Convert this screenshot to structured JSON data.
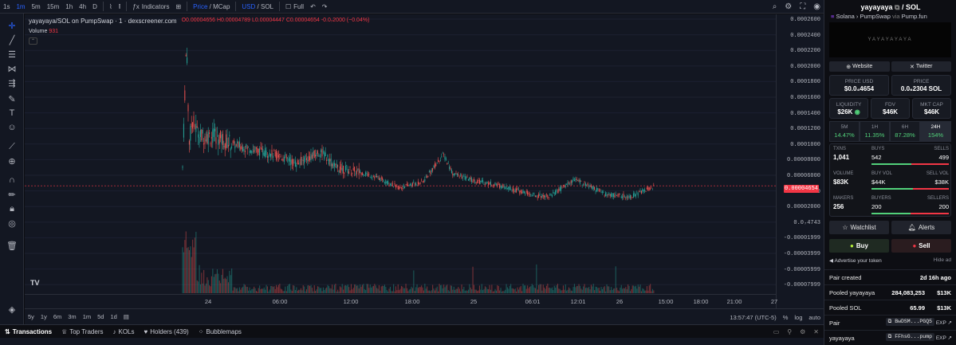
{
  "toolbar": {
    "intervals": [
      "1s",
      "1m",
      "5m",
      "15m",
      "1h",
      "4h",
      "D"
    ],
    "active_interval": "1m",
    "indicators": "Indicators",
    "price": "Price",
    "mcap": "MCap",
    "usd": "USD",
    "sol": "SOL",
    "full": "Full"
  },
  "chart": {
    "symbol_title": "yayayaya/SOL on PumpSwap · 1 · dexscreener.com",
    "ohlc": {
      "o": "O0.00004656",
      "h": "H0.00004789",
      "l": "L0.00004447",
      "c": "C0.00004654",
      "chg": "-0.0₇2000 (−0.04%)"
    },
    "volume_label": "Volume",
    "volume_value": "931",
    "last_price_tag": "0.00004654",
    "y_ticks": [
      "0.0002600",
      "0.0002400",
      "0.0002200",
      "0.0002000",
      "0.0001800",
      "0.0001600",
      "0.0001400",
      "0.0001200",
      "0.0001000",
      "0.00008000",
      "0.00006000",
      "0.00004000",
      "0.00002000",
      "0.0₇4743",
      "-0.00001999",
      "-0.00003999",
      "-0.00005999",
      "-0.00007999"
    ],
    "x_ticks": [
      "24",
      "06:00",
      "12:00",
      "18:00",
      "25",
      "06:01",
      "12:01",
      "26",
      "15:00",
      "18:00",
      "21:00",
      "27"
    ],
    "colors": {
      "up": "#26a69a",
      "down": "#ef5350"
    }
  },
  "range": {
    "buttons": [
      "5y",
      "1y",
      "6m",
      "3m",
      "1m",
      "5d",
      "1d"
    ],
    "time": "13:57:47 (UTC-5)",
    "percent": "%",
    "log": "log",
    "auto": "auto"
  },
  "tabs": [
    {
      "label": "Transactions"
    },
    {
      "label": "Top Traders"
    },
    {
      "label": "KOLs"
    },
    {
      "label": "Holders (439)"
    },
    {
      "label": "Bubblemaps"
    }
  ],
  "panel": {
    "title": "yayayaya",
    "quote": "SOL",
    "chain": "Solana",
    "dex": "PumpSwap",
    "via": "via",
    "source": "Pump.fun",
    "banner_text": "YAYAYAYAYA",
    "website": "Website",
    "twitter": "Twitter",
    "price_usd_label": "PRICE USD",
    "price_usd": "$0.0₄4654",
    "price_label": "PRICE",
    "price_sol": "0.0₆2304 SOL",
    "liquidity_label": "LIQUIDITY",
    "liquidity": "$26K",
    "fdv_label": "FDV",
    "fdv": "$46K",
    "mktcap_label": "MKT CAP",
    "mktcap": "$46K",
    "timeframes": [
      {
        "label": "5M",
        "value": "14.47%"
      },
      {
        "label": "1H",
        "value": "11.35%"
      },
      {
        "label": "6H",
        "value": "87.28%"
      },
      {
        "label": "24H",
        "value": "154%"
      }
    ],
    "txns_label": "TXNS",
    "txns": "1,041",
    "buys_label": "BUYS",
    "buys": "542",
    "sells_label": "SELLS",
    "sells": "499",
    "volume_label": "VOLUME",
    "volume": "$83K",
    "buyvol_label": "BUY VOL",
    "buyvol": "$44K",
    "sellvol_label": "SELL VOL",
    "sellvol": "$38K",
    "makers_label": "MAKERS",
    "makers": "256",
    "buyers_label": "BUYERS",
    "buyers": "200",
    "sellers_label": "SELLERS",
    "sellers": "200",
    "buy_ratio": 0.52,
    "buyvol_ratio": 0.54,
    "buyers_ratio": 0.5,
    "watchlist": "Watchlist",
    "alerts": "Alerts",
    "buy": "Buy",
    "sell": "Sell",
    "advertise": "Advertise your token",
    "hide_ad": "Hide ad",
    "pair_created_label": "Pair created",
    "pair_created": "2d 16h ago",
    "pooled_token_label": "Pooled yayayaya",
    "pooled_token": "284,083,253",
    "pooled_token_usd": "$13K",
    "pooled_sol_label": "Pooled SOL",
    "pooled_sol": "65.99",
    "pooled_sol_usd": "$13K",
    "pair_label": "Pair",
    "pair_addr": "BwDSM...PGQ5",
    "token_label": "yayayaya",
    "token_addr": "FFhsG...pump",
    "exp": "EXP"
  }
}
